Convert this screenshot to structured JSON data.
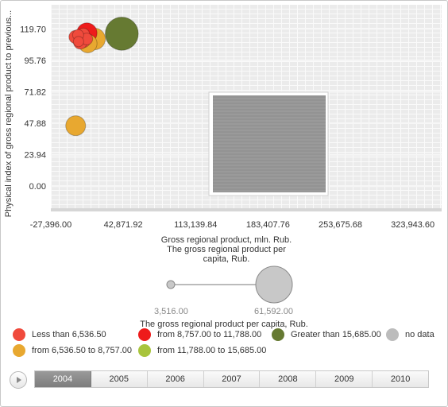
{
  "chart_data": {
    "type": "bubble",
    "y_axis": {
      "title": "Physical index of gross regional product to previous...",
      "ticks": [
        "0.00",
        "23.94",
        "47.88",
        "71.82",
        "95.76",
        "119.70"
      ],
      "range": [
        -18,
        138
      ]
    },
    "x_axis": {
      "title": "Gross regional product, mln. Rub.",
      "ticks": [
        "-27,396.00",
        "42,871.92",
        "113,139.84",
        "183,407.76",
        "253,675.68",
        "323,943.60"
      ],
      "range": [
        -27396,
        352000
      ]
    },
    "size_legend": {
      "title": "The gross regional product per capita, Rub.",
      "min_label": "3,516.00",
      "max_label": "61,592.00",
      "caption": "The gross regional product per capita, Rub."
    },
    "color_legend": [
      {
        "label": "Less than 6,536.50",
        "color": "#f04a3c"
      },
      {
        "label": "from 8,757.00 to 11,788.00",
        "color": "#ee1b1b"
      },
      {
        "label": "Greater than 15,685.00",
        "color": "#667a32"
      },
      {
        "label": "no data",
        "color": "#bcbcbc"
      },
      {
        "label": "from 6,536.50 to 8,757.00",
        "color": "#e8a830"
      },
      {
        "label": "from 11,788.00 to 15,685.00",
        "color": "#a8c43c"
      }
    ],
    "points": [
      {
        "x": 7600,
        "y": 116.5,
        "size": 14000,
        "color": "#ee1b1b"
      },
      {
        "x": 15000,
        "y": 112.0,
        "size": 15500,
        "color": "#e8a830"
      },
      {
        "x": 8500,
        "y": 108.5,
        "size": 12000,
        "color": "#e8a830"
      },
      {
        "x": 3500,
        "y": 111.5,
        "size": 10000,
        "color": "#f04a3c"
      },
      {
        "x": 600,
        "y": 113.0,
        "size": 8000,
        "color": "#f04a3c"
      },
      {
        "x": -3500,
        "y": 113.5,
        "size": 7000,
        "color": "#f04a3c"
      },
      {
        "x": 1200,
        "y": 109.5,
        "size": 7500,
        "color": "#f04a3c"
      },
      {
        "x": 4200,
        "y": 115.5,
        "size": 6500,
        "color": "#f04a3c"
      },
      {
        "x": -900,
        "y": 115.0,
        "size": 5500,
        "color": "#f04a3c"
      },
      {
        "x": 7500,
        "y": 112.0,
        "size": 6000,
        "color": "#f04a3c"
      },
      {
        "x": -500,
        "y": 110.0,
        "size": 5000,
        "color": "#f04a3c"
      },
      {
        "x": 41500,
        "y": 116.0,
        "size": 32000,
        "color": "#667a32"
      },
      {
        "x": -3300,
        "y": 46.0,
        "size": 13500,
        "color": "#e8a830"
      }
    ]
  },
  "timeline": {
    "years": [
      "2004",
      "2005",
      "2006",
      "2007",
      "2008",
      "2009",
      "2010"
    ],
    "selected": "2004"
  }
}
